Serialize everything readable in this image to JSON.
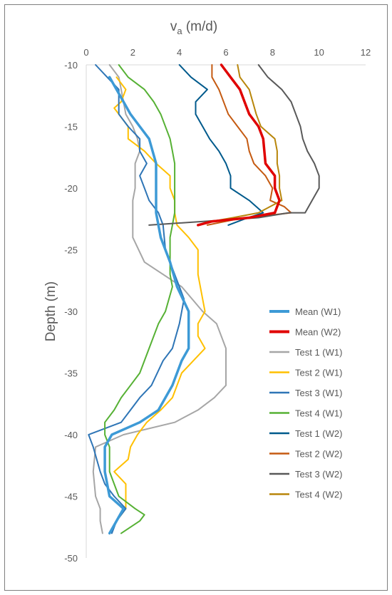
{
  "chart_data": {
    "type": "line",
    "title": "",
    "xlabel": "v",
    "xlabel_sub": "a",
    "xlabel_unit": " (m/d)",
    "ylabel": "Depth (m)",
    "xlim": [
      0,
      12
    ],
    "ylim": [
      -50,
      -10
    ],
    "x_ticks": [
      0,
      2,
      4,
      6,
      8,
      10,
      12
    ],
    "y_ticks": [
      -10,
      -15,
      -20,
      -25,
      -30,
      -35,
      -40,
      -45,
      -50
    ],
    "x_axis_position": "top",
    "grid": false,
    "legend_position": "right",
    "series": [
      {
        "name": "Mean (W1)",
        "color": "#3d9ad6",
        "width": 3.5,
        "points": [
          [
            1.0,
            -11
          ],
          [
            1.6,
            -13
          ],
          [
            1.9,
            -14
          ],
          [
            2.3,
            -15
          ],
          [
            2.7,
            -16
          ],
          [
            3.0,
            -18
          ],
          [
            3.0,
            -20
          ],
          [
            3.0,
            -22
          ],
          [
            3.2,
            -24
          ],
          [
            3.6,
            -26
          ],
          [
            3.9,
            -28
          ],
          [
            4.4,
            -30
          ],
          [
            4.4,
            -32
          ],
          [
            4.4,
            -33
          ],
          [
            4.1,
            -34
          ],
          [
            3.7,
            -36
          ],
          [
            3.1,
            -38
          ],
          [
            2.3,
            -39
          ],
          [
            1.1,
            -40
          ],
          [
            0.8,
            -41
          ],
          [
            0.8,
            -43
          ],
          [
            1.0,
            -45
          ],
          [
            1.6,
            -46
          ],
          [
            1.3,
            -47
          ],
          [
            1.0,
            -48
          ]
        ]
      },
      {
        "name": "Mean (W2)",
        "color": "#e00000",
        "width": 3.5,
        "points": [
          [
            5.8,
            -10
          ],
          [
            6.2,
            -11
          ],
          [
            6.6,
            -12
          ],
          [
            6.8,
            -13
          ],
          [
            7.0,
            -14
          ],
          [
            7.4,
            -15
          ],
          [
            7.6,
            -16
          ],
          [
            7.7,
            -18
          ],
          [
            8.1,
            -19
          ],
          [
            8.1,
            -20
          ],
          [
            8.3,
            -21
          ],
          [
            8.1,
            -22
          ],
          [
            7.0,
            -22.4
          ],
          [
            5.4,
            -22.7
          ],
          [
            4.8,
            -23
          ]
        ]
      },
      {
        "name": "Test 1 (W1)",
        "color": "#a6a6a6",
        "width": 2,
        "points": [
          [
            1.0,
            -10
          ],
          [
            1.4,
            -11
          ],
          [
            1.5,
            -12
          ],
          [
            1.7,
            -14
          ],
          [
            2.0,
            -15
          ],
          [
            2.2,
            -16
          ],
          [
            2.3,
            -17
          ],
          [
            2.1,
            -18
          ],
          [
            2.1,
            -20
          ],
          [
            2.0,
            -21
          ],
          [
            2.0,
            -22
          ],
          [
            2.0,
            -23
          ],
          [
            2.0,
            -24
          ],
          [
            2.5,
            -26
          ],
          [
            3.3,
            -27
          ],
          [
            4.1,
            -28
          ],
          [
            5.0,
            -30
          ],
          [
            5.6,
            -31
          ],
          [
            6.0,
            -33
          ],
          [
            6.0,
            -36
          ],
          [
            5.5,
            -37
          ],
          [
            4.8,
            -38
          ],
          [
            3.8,
            -39
          ],
          [
            1.6,
            -40
          ],
          [
            0.4,
            -41
          ],
          [
            0.3,
            -43
          ],
          [
            0.4,
            -45
          ],
          [
            0.6,
            -46
          ],
          [
            0.6,
            -47
          ],
          [
            0.7,
            -48
          ]
        ]
      },
      {
        "name": "Test 2 (W1)",
        "color": "#ffc000",
        "width": 2,
        "points": [
          [
            1.3,
            -11
          ],
          [
            1.7,
            -12
          ],
          [
            1.5,
            -13
          ],
          [
            1.2,
            -13.5
          ],
          [
            1.4,
            -14
          ],
          [
            1.8,
            -15
          ],
          [
            1.8,
            -16
          ],
          [
            2.5,
            -17
          ],
          [
            3.0,
            -18
          ],
          [
            3.6,
            -19
          ],
          [
            3.6,
            -20
          ],
          [
            3.8,
            -21
          ],
          [
            3.8,
            -22
          ],
          [
            3.9,
            -23
          ],
          [
            4.4,
            -24
          ],
          [
            4.8,
            -25
          ],
          [
            4.8,
            -27
          ],
          [
            5.0,
            -29
          ],
          [
            5.1,
            -30
          ],
          [
            4.8,
            -31
          ],
          [
            4.8,
            -32
          ],
          [
            5.1,
            -33
          ],
          [
            4.6,
            -34
          ],
          [
            4.1,
            -35
          ],
          [
            3.7,
            -37
          ],
          [
            3.2,
            -38
          ],
          [
            2.6,
            -39
          ],
          [
            2.2,
            -40
          ],
          [
            1.9,
            -41
          ],
          [
            1.8,
            -42
          ],
          [
            1.2,
            -43
          ],
          [
            1.7,
            -44
          ],
          [
            1.7,
            -45
          ],
          [
            1.7,
            -46
          ],
          [
            1.3,
            -47
          ],
          [
            1.0,
            -48
          ]
        ]
      },
      {
        "name": "Test 3 (W1)",
        "color": "#2e75b6",
        "width": 2,
        "points": [
          [
            0.4,
            -10
          ],
          [
            0.9,
            -11
          ],
          [
            1.4,
            -12
          ],
          [
            1.4,
            -13
          ],
          [
            1.4,
            -14
          ],
          [
            1.8,
            -15
          ],
          [
            2.3,
            -16
          ],
          [
            2.3,
            -17
          ],
          [
            2.6,
            -18
          ],
          [
            2.3,
            -19
          ],
          [
            2.5,
            -20
          ],
          [
            2.7,
            -21
          ],
          [
            3.1,
            -22
          ],
          [
            3.3,
            -23
          ],
          [
            3.4,
            -25
          ],
          [
            3.6,
            -26
          ],
          [
            3.8,
            -27
          ],
          [
            4.0,
            -28
          ],
          [
            4.2,
            -29
          ],
          [
            4.0,
            -31
          ],
          [
            3.7,
            -33
          ],
          [
            3.3,
            -34
          ],
          [
            2.8,
            -36
          ],
          [
            2.3,
            -37
          ],
          [
            1.9,
            -38
          ],
          [
            1.5,
            -39
          ],
          [
            0.1,
            -40
          ],
          [
            0.3,
            -41
          ],
          [
            0.6,
            -43
          ],
          [
            0.8,
            -44
          ],
          [
            1.2,
            -45
          ],
          [
            1.7,
            -46
          ],
          [
            1.3,
            -47
          ],
          [
            1.1,
            -48
          ]
        ]
      },
      {
        "name": "Test 4 (W1)",
        "color": "#56b134",
        "width": 2,
        "points": [
          [
            1.4,
            -10
          ],
          [
            1.8,
            -11
          ],
          [
            2.5,
            -12
          ],
          [
            2.9,
            -13
          ],
          [
            3.2,
            -14
          ],
          [
            3.6,
            -16
          ],
          [
            3.7,
            -17
          ],
          [
            3.8,
            -18
          ],
          [
            3.8,
            -20
          ],
          [
            3.8,
            -22
          ],
          [
            3.7,
            -23
          ],
          [
            3.6,
            -24
          ],
          [
            3.6,
            -26
          ],
          [
            3.6,
            -27
          ],
          [
            3.7,
            -28
          ],
          [
            3.4,
            -30
          ],
          [
            3.1,
            -31
          ],
          [
            2.7,
            -33
          ],
          [
            2.3,
            -35
          ],
          [
            1.9,
            -36
          ],
          [
            1.5,
            -37
          ],
          [
            1.2,
            -38
          ],
          [
            0.8,
            -39
          ],
          [
            0.8,
            -40
          ],
          [
            1.0,
            -41
          ],
          [
            1.0,
            -43
          ],
          [
            1.4,
            -45
          ],
          [
            2.1,
            -46
          ],
          [
            2.5,
            -46.5
          ],
          [
            2.3,
            -47
          ],
          [
            1.5,
            -48
          ]
        ]
      },
      {
        "name": "Test 1 (W2)",
        "color": "#005a8c",
        "width": 2,
        "points": [
          [
            4.0,
            -10
          ],
          [
            4.5,
            -11
          ],
          [
            5.2,
            -12
          ],
          [
            4.7,
            -13
          ],
          [
            4.7,
            -14
          ],
          [
            5.0,
            -15
          ],
          [
            5.3,
            -16
          ],
          [
            5.7,
            -17
          ],
          [
            6.0,
            -18
          ],
          [
            6.2,
            -19
          ],
          [
            6.2,
            -20
          ],
          [
            7.0,
            -21
          ],
          [
            7.6,
            -22
          ],
          [
            6.8,
            -22.5
          ],
          [
            6.1,
            -23
          ]
        ]
      },
      {
        "name": "Test 2 (W2)",
        "color": "#c55a11",
        "width": 2,
        "points": [
          [
            5.4,
            -10
          ],
          [
            5.4,
            -11
          ],
          [
            5.7,
            -12
          ],
          [
            6.1,
            -14
          ],
          [
            6.5,
            -15
          ],
          [
            6.9,
            -16
          ],
          [
            7.0,
            -17
          ],
          [
            7.2,
            -18
          ],
          [
            7.7,
            -19
          ],
          [
            8.0,
            -20
          ],
          [
            7.9,
            -21
          ],
          [
            8.5,
            -21.5
          ],
          [
            8.8,
            -22
          ],
          [
            6.5,
            -22.5
          ],
          [
            5.2,
            -23
          ]
        ]
      },
      {
        "name": "Test 3 (W2)",
        "color": "#595959",
        "width": 2,
        "points": [
          [
            7.4,
            -10
          ],
          [
            7.8,
            -11
          ],
          [
            8.4,
            -12
          ],
          [
            8.8,
            -13
          ],
          [
            9.0,
            -14
          ],
          [
            9.2,
            -15
          ],
          [
            9.3,
            -16
          ],
          [
            9.5,
            -17
          ],
          [
            9.8,
            -18
          ],
          [
            10.0,
            -19
          ],
          [
            10.0,
            -20
          ],
          [
            9.7,
            -21
          ],
          [
            9.4,
            -22
          ],
          [
            8.7,
            -22
          ],
          [
            7.4,
            -22.4
          ],
          [
            2.7,
            -23
          ]
        ]
      },
      {
        "name": "Test 4 (W2)",
        "color": "#b8860b",
        "width": 2,
        "points": [
          [
            6.5,
            -10
          ],
          [
            6.6,
            -11
          ],
          [
            7.0,
            -12
          ],
          [
            7.3,
            -14
          ],
          [
            7.5,
            -15
          ],
          [
            8.1,
            -16
          ],
          [
            8.2,
            -17
          ],
          [
            8.2,
            -18
          ],
          [
            8.3,
            -19
          ],
          [
            8.3,
            -20
          ],
          [
            8.4,
            -21
          ],
          [
            7.9,
            -21.5
          ],
          [
            7.4,
            -22
          ],
          [
            6.3,
            -22.4
          ],
          [
            5.1,
            -22.8
          ]
        ]
      }
    ]
  }
}
